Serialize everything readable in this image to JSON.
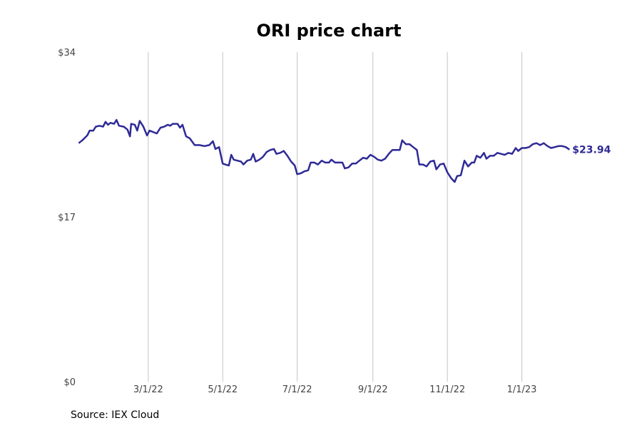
{
  "chart_data": {
    "type": "line",
    "title": "ORI price chart",
    "xlabel": "",
    "ylabel": "",
    "source": "Source: IEX Cloud",
    "ylim": [
      0,
      34
    ],
    "y_ticks": [
      {
        "value": 0,
        "label": "$0"
      },
      {
        "value": 17,
        "label": "$17"
      },
      {
        "value": 34,
        "label": "$34"
      }
    ],
    "xlim": [
      "2022-01-04",
      "2023-02-10"
    ],
    "x_ticks": [
      {
        "value": "2022-03-01",
        "label": "3/1/22"
      },
      {
        "value": "2022-05-01",
        "label": "5/1/22"
      },
      {
        "value": "2022-07-01",
        "label": "7/1/22"
      },
      {
        "value": "2022-09-01",
        "label": "9/1/22"
      },
      {
        "value": "2022-11-01",
        "label": "11/1/22"
      },
      {
        "value": "2023-01-01",
        "label": "1/1/23"
      }
    ],
    "grid": {
      "x": true,
      "y": false
    },
    "line_color": "#2e2a96",
    "end_label": "$23.94",
    "series": [
      {
        "points": [
          [
            "2022-01-03",
            24.6
          ],
          [
            "2022-01-06",
            24.9
          ],
          [
            "2022-01-10",
            25.4
          ],
          [
            "2022-01-12",
            25.9
          ],
          [
            "2022-01-15",
            25.9
          ],
          [
            "2022-01-17",
            26.3
          ],
          [
            "2022-01-20",
            26.4
          ],
          [
            "2022-01-23",
            26.3
          ],
          [
            "2022-01-25",
            26.8
          ],
          [
            "2022-01-27",
            26.5
          ],
          [
            "2022-01-29",
            26.7
          ],
          [
            "2022-02-01",
            26.6
          ],
          [
            "2022-02-03",
            27.0
          ],
          [
            "2022-02-05",
            26.4
          ],
          [
            "2022-02-09",
            26.3
          ],
          [
            "2022-02-12",
            26.0
          ],
          [
            "2022-02-14",
            25.3
          ],
          [
            "2022-02-15",
            26.6
          ],
          [
            "2022-02-18",
            26.5
          ],
          [
            "2022-02-20",
            25.9
          ],
          [
            "2022-02-22",
            26.9
          ],
          [
            "2022-02-25",
            26.3
          ],
          [
            "2022-02-28",
            25.4
          ],
          [
            "2022-03-02",
            25.9
          ],
          [
            "2022-03-04",
            25.8
          ],
          [
            "2022-03-08",
            25.6
          ],
          [
            "2022-03-11",
            26.2
          ],
          [
            "2022-03-14",
            26.3
          ],
          [
            "2022-03-17",
            26.5
          ],
          [
            "2022-03-19",
            26.4
          ],
          [
            "2022-03-21",
            26.6
          ],
          [
            "2022-03-25",
            26.6
          ],
          [
            "2022-03-27",
            26.2
          ],
          [
            "2022-03-29",
            26.5
          ],
          [
            "2022-04-01",
            25.3
          ],
          [
            "2022-04-04",
            25.1
          ],
          [
            "2022-04-08",
            24.4
          ],
          [
            "2022-04-12",
            24.4
          ],
          [
            "2022-04-16",
            24.3
          ],
          [
            "2022-04-20",
            24.4
          ],
          [
            "2022-04-23",
            24.8
          ],
          [
            "2022-04-25",
            24.0
          ],
          [
            "2022-04-28",
            24.2
          ],
          [
            "2022-05-01",
            22.5
          ],
          [
            "2022-05-03",
            22.4
          ],
          [
            "2022-05-06",
            22.3
          ],
          [
            "2022-05-08",
            23.4
          ],
          [
            "2022-05-10",
            22.9
          ],
          [
            "2022-05-13",
            22.8
          ],
          [
            "2022-05-16",
            22.7
          ],
          [
            "2022-05-18",
            22.4
          ],
          [
            "2022-05-21",
            22.8
          ],
          [
            "2022-05-24",
            22.9
          ],
          [
            "2022-05-26",
            23.5
          ],
          [
            "2022-05-28",
            22.7
          ],
          [
            "2022-05-31",
            22.9
          ],
          [
            "2022-06-03",
            23.2
          ],
          [
            "2022-06-06",
            23.7
          ],
          [
            "2022-06-09",
            23.9
          ],
          [
            "2022-06-12",
            24.0
          ],
          [
            "2022-06-14",
            23.5
          ],
          [
            "2022-06-17",
            23.6
          ],
          [
            "2022-06-20",
            23.8
          ],
          [
            "2022-06-23",
            23.3
          ],
          [
            "2022-06-26",
            22.7
          ],
          [
            "2022-06-29",
            22.3
          ],
          [
            "2022-07-01",
            21.4
          ],
          [
            "2022-07-04",
            21.5
          ],
          [
            "2022-07-07",
            21.7
          ],
          [
            "2022-07-10",
            21.8
          ],
          [
            "2022-07-12",
            22.6
          ],
          [
            "2022-07-15",
            22.6
          ],
          [
            "2022-07-18",
            22.4
          ],
          [
            "2022-07-21",
            22.8
          ],
          [
            "2022-07-24",
            22.6
          ],
          [
            "2022-07-27",
            22.6
          ],
          [
            "2022-07-29",
            22.9
          ],
          [
            "2022-08-01",
            22.6
          ],
          [
            "2022-08-04",
            22.6
          ],
          [
            "2022-08-07",
            22.6
          ],
          [
            "2022-08-09",
            22.0
          ],
          [
            "2022-08-12",
            22.1
          ],
          [
            "2022-08-15",
            22.5
          ],
          [
            "2022-08-18",
            22.5
          ],
          [
            "2022-08-21",
            22.8
          ],
          [
            "2022-08-24",
            23.1
          ],
          [
            "2022-08-27",
            23.0
          ],
          [
            "2022-08-30",
            23.4
          ],
          [
            "2022-09-02",
            23.2
          ],
          [
            "2022-09-05",
            22.9
          ],
          [
            "2022-09-08",
            22.8
          ],
          [
            "2022-09-11",
            23.0
          ],
          [
            "2022-09-14",
            23.5
          ],
          [
            "2022-09-17",
            23.9
          ],
          [
            "2022-09-20",
            23.9
          ],
          [
            "2022-09-23",
            23.9
          ],
          [
            "2022-09-25",
            24.9
          ],
          [
            "2022-09-28",
            24.5
          ],
          [
            "2022-10-01",
            24.5
          ],
          [
            "2022-10-04",
            24.2
          ],
          [
            "2022-10-07",
            23.9
          ],
          [
            "2022-10-09",
            22.4
          ],
          [
            "2022-10-12",
            22.4
          ],
          [
            "2022-10-15",
            22.2
          ],
          [
            "2022-10-18",
            22.7
          ],
          [
            "2022-10-21",
            22.8
          ],
          [
            "2022-10-23",
            21.9
          ],
          [
            "2022-10-26",
            22.4
          ],
          [
            "2022-10-29",
            22.5
          ],
          [
            "2022-11-01",
            21.6
          ],
          [
            "2022-11-04",
            21.0
          ],
          [
            "2022-11-07",
            20.6
          ],
          [
            "2022-11-09",
            21.2
          ],
          [
            "2022-11-12",
            21.3
          ],
          [
            "2022-11-15",
            22.8
          ],
          [
            "2022-11-18",
            22.2
          ],
          [
            "2022-11-21",
            22.6
          ],
          [
            "2022-11-23",
            22.6
          ],
          [
            "2022-11-25",
            23.3
          ],
          [
            "2022-11-28",
            23.1
          ],
          [
            "2022-12-01",
            23.6
          ],
          [
            "2022-12-03",
            23.0
          ],
          [
            "2022-12-06",
            23.3
          ],
          [
            "2022-12-09",
            23.3
          ],
          [
            "2022-12-12",
            23.6
          ],
          [
            "2022-12-15",
            23.5
          ],
          [
            "2022-12-18",
            23.4
          ],
          [
            "2022-12-21",
            23.6
          ],
          [
            "2022-12-24",
            23.5
          ],
          [
            "2022-12-27",
            24.1
          ],
          [
            "2022-12-29",
            23.8
          ],
          [
            "2023-01-01",
            24.1
          ],
          [
            "2023-01-04",
            24.1
          ],
          [
            "2023-01-07",
            24.2
          ],
          [
            "2023-01-10",
            24.5
          ],
          [
            "2023-01-13",
            24.6
          ],
          [
            "2023-01-16",
            24.4
          ],
          [
            "2023-01-19",
            24.6
          ],
          [
            "2023-01-22",
            24.3
          ],
          [
            "2023-01-25",
            24.1
          ],
          [
            "2023-01-28",
            24.2
          ],
          [
            "2023-01-31",
            24.3
          ],
          [
            "2023-02-03",
            24.3
          ],
          [
            "2023-02-06",
            24.2
          ],
          [
            "2023-02-09",
            23.94
          ]
        ]
      }
    ]
  }
}
